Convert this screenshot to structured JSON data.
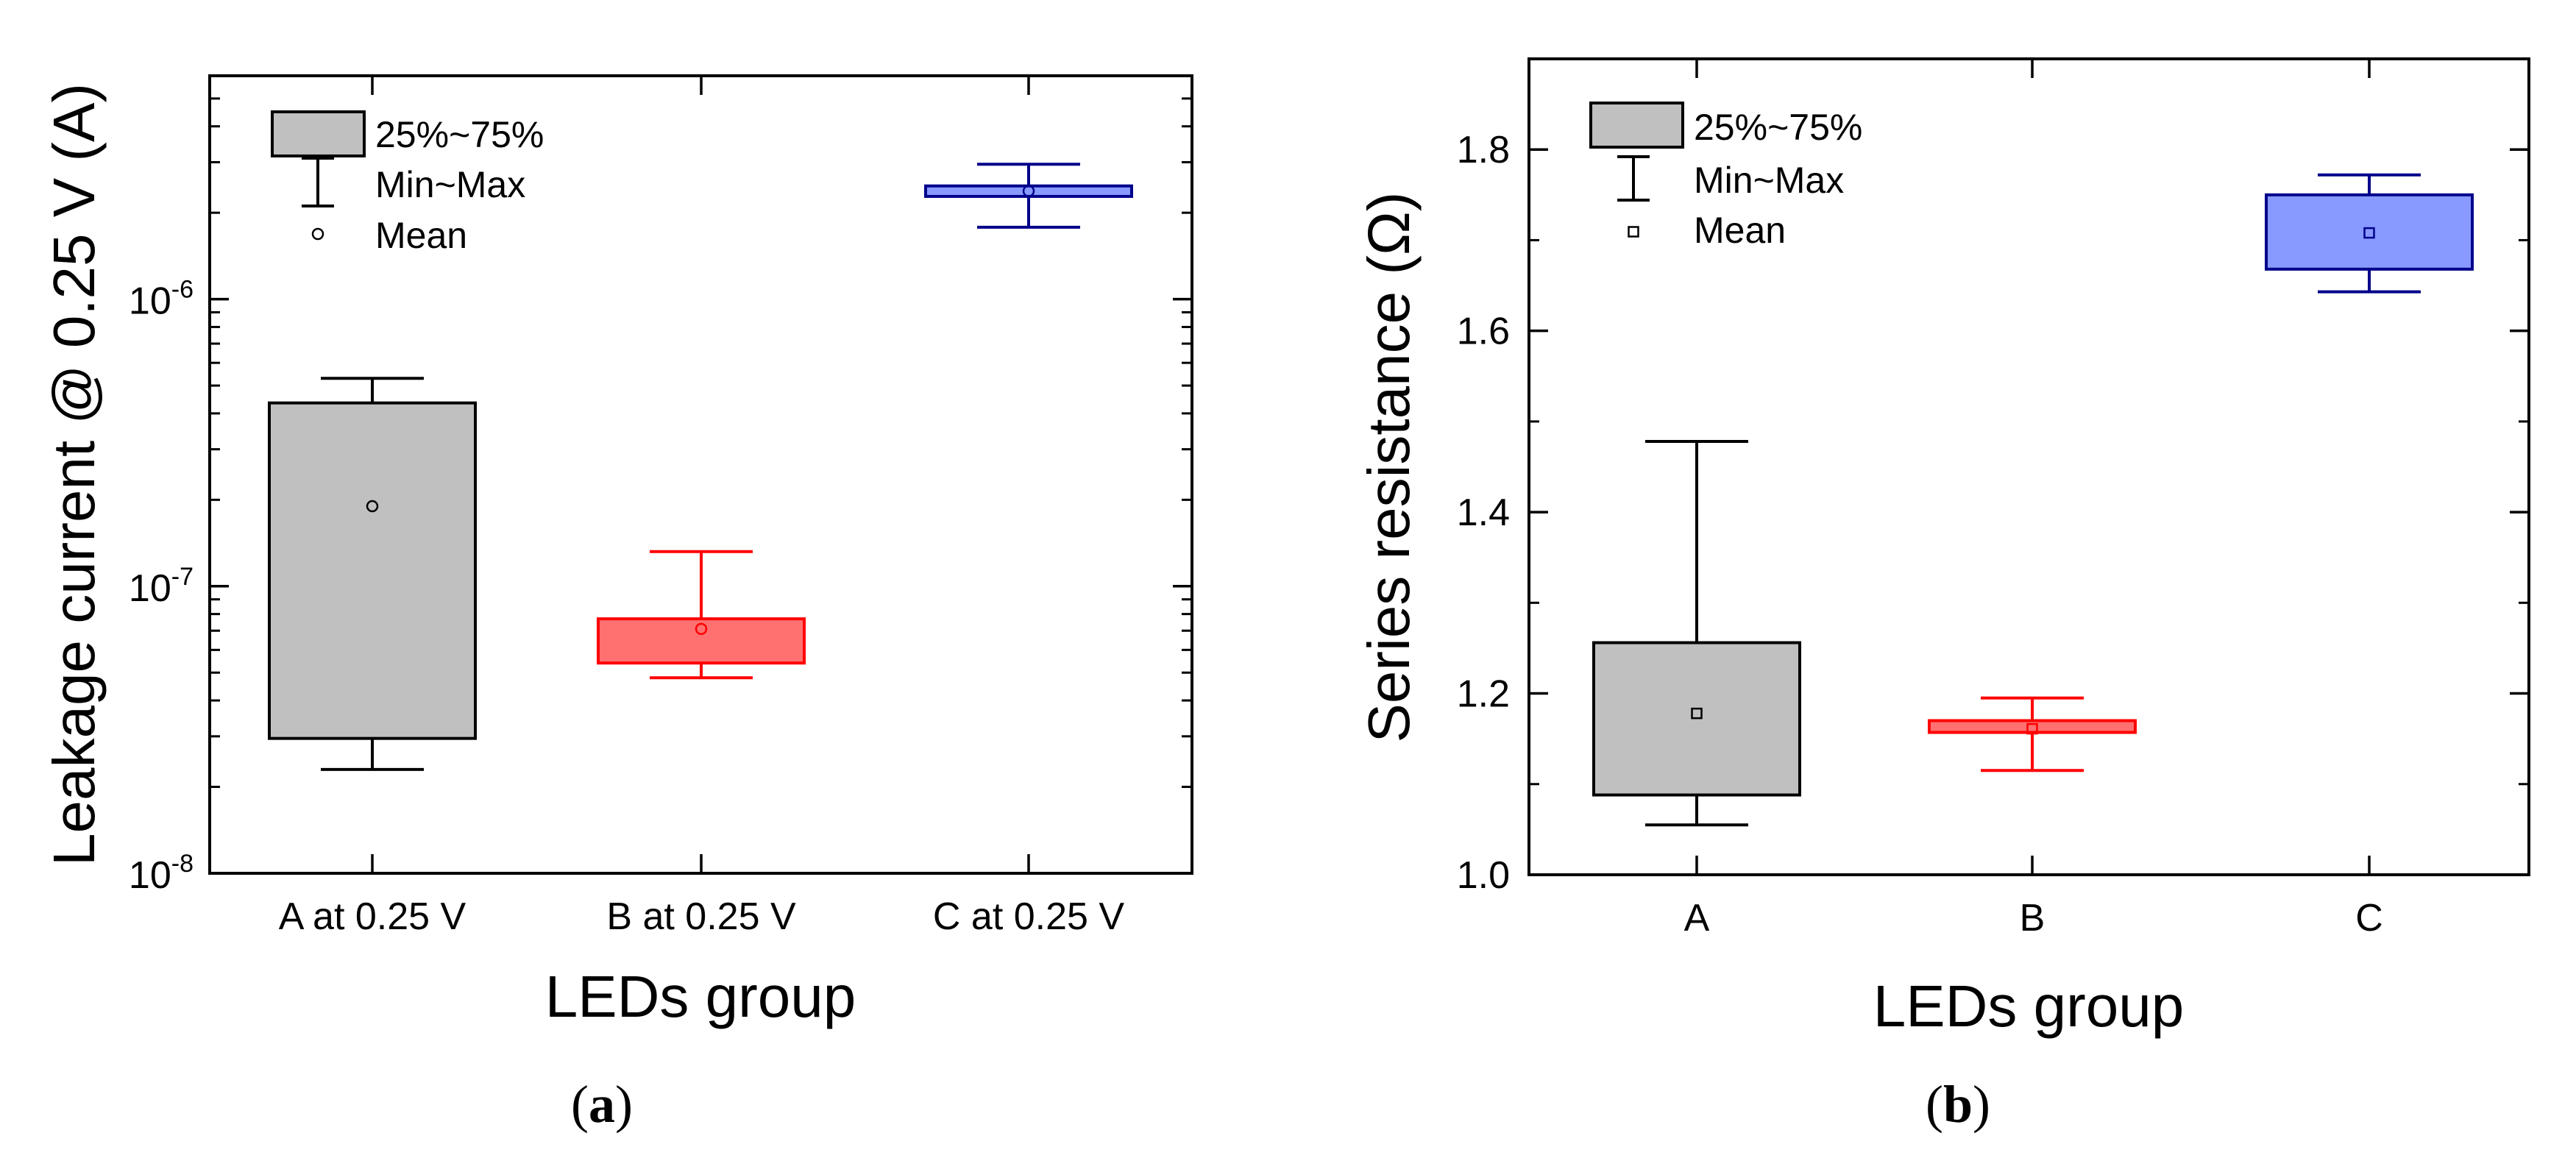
{
  "chart_data": [
    {
      "type": "box",
      "panel_label": "a",
      "title": "",
      "xlabel": "LEDs group",
      "ylabel": "Leakage current @ 0.25 V (A)",
      "yscale": "log",
      "ylim": [
        1e-08,
        6e-06
      ],
      "y_ticks": [
        {
          "value": 1e-08,
          "base": "10",
          "exp": "-8"
        },
        {
          "value": 1e-07,
          "base": "10",
          "exp": "-7"
        },
        {
          "value": 1e-06,
          "base": "10",
          "exp": "-6"
        }
      ],
      "categories": [
        "A at 0.25 V",
        "B at 0.25 V",
        "C at 0.25 V"
      ],
      "boxes": [
        {
          "name": "A at 0.25 V",
          "min": 2.3e-08,
          "q1": 2.95e-08,
          "q3": 4.35e-07,
          "max": 5.3e-07,
          "mean": 1.9e-07,
          "color": "#c0c0c0",
          "edge": "#000000"
        },
        {
          "name": "B at 0.25 V",
          "min": 4.8e-08,
          "q1": 5.4e-08,
          "q3": 7.7e-08,
          "max": 1.32e-07,
          "mean": 7.1e-08,
          "color": "#ff7070",
          "edge": "#ff0000"
        },
        {
          "name": "C at 0.25 V",
          "min": 1.78e-06,
          "q1": 2.28e-06,
          "q3": 2.48e-06,
          "max": 2.95e-06,
          "mean": 2.38e-06,
          "color": "#8899ff",
          "edge": "#00008b"
        }
      ],
      "legend": {
        "position": "top-left",
        "entries": [
          "25%~75%",
          "Min~Max",
          "Mean"
        ]
      }
    },
    {
      "type": "box",
      "panel_label": "b",
      "title": "",
      "xlabel": "LEDs group",
      "ylabel": "Series resistance (Ω)",
      "yscale": "linear",
      "ylim": [
        1.0,
        1.9
      ],
      "y_ticks": [
        {
          "value": 1.0,
          "label": "1.0"
        },
        {
          "value": 1.2,
          "label": "1.2"
        },
        {
          "value": 1.4,
          "label": "1.4"
        },
        {
          "value": 1.6,
          "label": "1.6"
        },
        {
          "value": 1.8,
          "label": "1.8"
        }
      ],
      "categories": [
        "A",
        "B",
        "C"
      ],
      "boxes": [
        {
          "name": "A",
          "min": 1.055,
          "q1": 1.088,
          "q3": 1.256,
          "max": 1.478,
          "mean": 1.178,
          "color": "#c0c0c0",
          "edge": "#000000"
        },
        {
          "name": "B",
          "min": 1.115,
          "q1": 1.157,
          "q3": 1.17,
          "max": 1.195,
          "mean": 1.161,
          "color": "#ff7070",
          "edge": "#ff0000"
        },
        {
          "name": "C",
          "min": 1.643,
          "q1": 1.668,
          "q3": 1.75,
          "max": 1.772,
          "mean": 1.708,
          "color": "#8899ff",
          "edge": "#00008b"
        }
      ],
      "legend": {
        "position": "top-left",
        "entries": [
          "25%~75%",
          "Min~Max",
          "Mean"
        ]
      }
    }
  ]
}
